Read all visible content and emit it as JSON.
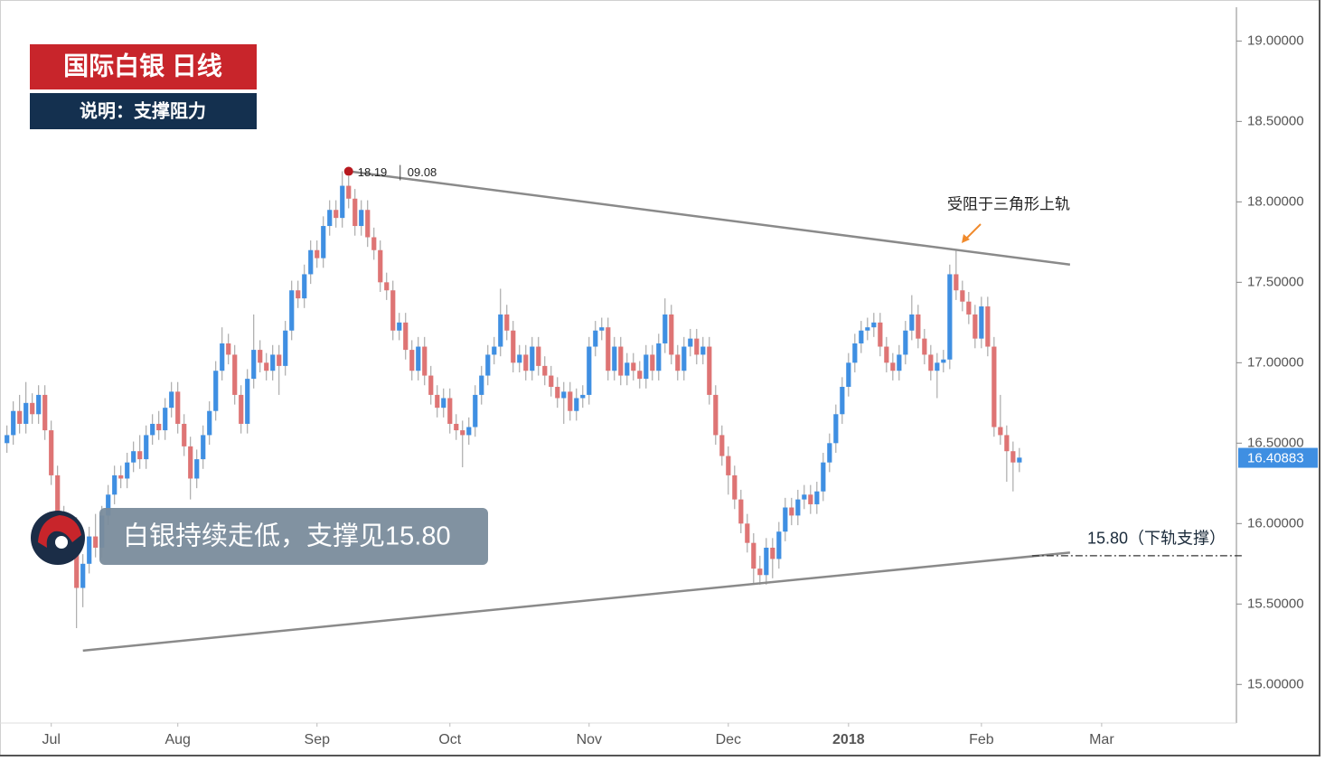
{
  "chart_data": {
    "type": "candlestick",
    "title": "国际白银  日线",
    "subtitle": "说明：支撑阻力",
    "caption": "白银持续走低，支撑见15.80",
    "annotation": "受阻于三角形上轨",
    "up_color": "#3f8fe2",
    "down_color": "#de7474",
    "x": [
      0,
      1,
      2,
      3,
      4,
      5,
      6,
      7,
      8,
      9,
      10,
      11,
      12,
      13,
      14,
      15,
      16,
      17,
      18,
      19,
      20,
      21,
      22,
      23,
      24,
      25,
      26,
      27,
      28,
      29,
      30,
      31,
      32,
      33,
      34,
      35,
      36,
      37,
      38,
      39,
      40,
      41,
      42,
      43,
      44,
      45,
      46,
      47,
      48,
      49,
      50,
      51,
      52,
      53,
      54,
      55,
      56,
      57,
      58,
      59,
      60,
      61,
      62,
      63,
      64,
      65,
      66,
      67,
      68,
      69,
      70,
      71,
      72,
      73,
      74,
      75,
      76,
      77,
      78,
      79,
      80,
      81,
      82,
      83,
      84,
      85,
      86,
      87,
      88,
      89,
      90,
      91,
      92,
      93,
      94,
      95,
      96,
      97,
      98,
      99,
      100,
      101,
      102,
      103,
      104,
      105,
      106,
      107,
      108,
      109,
      110,
      111,
      112,
      113,
      114,
      115,
      116,
      117,
      118,
      119,
      120,
      121,
      122,
      123,
      124,
      125,
      126,
      127,
      128,
      129,
      130,
      131,
      132,
      133,
      134,
      135,
      136,
      137,
      138,
      139,
      140,
      141,
      142,
      143,
      144,
      145,
      146,
      147,
      148,
      149,
      150,
      151,
      152,
      153,
      154,
      155,
      156,
      157,
      158,
      159,
      160
    ],
    "open": [
      16.5,
      16.55,
      16.7,
      16.62,
      16.75,
      16.68,
      16.8,
      16.58,
      16.3,
      16.05,
      15.88,
      15.98,
      15.6,
      15.75,
      15.92,
      15.85,
      16.05,
      16.18,
      16.3,
      16.28,
      16.38,
      16.45,
      16.4,
      16.55,
      16.62,
      16.58,
      16.72,
      16.82,
      16.62,
      16.48,
      16.28,
      16.4,
      16.55,
      16.7,
      16.95,
      17.12,
      17.05,
      16.8,
      16.62,
      16.9,
      17.08,
      17.0,
      16.95,
      17.05,
      16.98,
      17.2,
      17.45,
      17.4,
      17.55,
      17.7,
      17.65,
      17.85,
      17.95,
      17.9,
      18.1,
      18.02,
      17.85,
      17.95,
      17.78,
      17.7,
      17.5,
      17.45,
      17.2,
      17.25,
      17.08,
      16.95,
      17.1,
      16.92,
      16.8,
      16.72,
      16.78,
      16.62,
      16.58,
      16.55,
      16.6,
      16.8,
      16.92,
      17.05,
      17.1,
      17.3,
      17.2,
      17.0,
      17.05,
      16.95,
      17.1,
      16.98,
      16.92,
      16.85,
      16.78,
      16.82,
      16.7,
      16.78,
      16.8,
      17.1,
      17.2,
      17.22,
      16.95,
      17.1,
      16.92,
      17.0,
      16.95,
      16.9,
      17.05,
      16.95,
      17.12,
      17.3,
      17.05,
      16.95,
      17.1,
      17.15,
      17.05,
      17.1,
      16.8,
      16.55,
      16.42,
      16.3,
      16.15,
      16.0,
      15.88,
      15.72,
      15.68,
      15.85,
      15.78,
      15.95,
      16.1,
      16.05,
      16.15,
      16.18,
      16.12,
      16.2,
      16.38,
      16.5,
      16.68,
      16.85,
      17.0,
      17.12,
      17.2,
      17.22,
      17.25,
      17.1,
      17.0,
      16.95,
      17.05,
      17.2,
      17.3,
      17.15,
      17.05,
      16.95,
      17.0,
      17.02,
      17.55,
      17.45,
      17.38,
      17.3,
      17.15,
      17.35,
      17.1,
      16.6,
      16.55,
      16.45,
      16.38
    ],
    "high": [
      16.61,
      16.76,
      16.8,
      16.88,
      16.81,
      16.86,
      16.86,
      16.64,
      16.36,
      16.11,
      16.04,
      16.04,
      15.81,
      15.98,
      16.06,
      16.11,
      16.24,
      16.36,
      16.36,
      16.44,
      16.51,
      16.55,
      16.61,
      16.68,
      16.7,
      16.78,
      16.88,
      16.88,
      16.68,
      16.54,
      16.46,
      16.61,
      16.76,
      17.01,
      17.22,
      17.18,
      17.11,
      16.86,
      16.96,
      17.3,
      17.14,
      17.06,
      17.11,
      17.11,
      17.26,
      17.51,
      17.51,
      17.61,
      17.76,
      17.76,
      17.91,
      18.01,
      18.01,
      18.19,
      18.16,
      18.08,
      18.01,
      18.01,
      17.84,
      17.76,
      17.56,
      17.51,
      17.31,
      17.31,
      17.14,
      17.16,
      17.16,
      16.98,
      16.86,
      16.84,
      16.84,
      16.68,
      16.64,
      16.66,
      16.86,
      16.98,
      17.11,
      17.16,
      17.46,
      17.36,
      17.26,
      17.11,
      17.11,
      17.16,
      17.16,
      17.04,
      16.98,
      16.91,
      16.88,
      16.88,
      16.84,
      16.86,
      17.16,
      17.26,
      17.28,
      17.28,
      17.16,
      17.16,
      17.06,
      17.06,
      17.01,
      17.11,
      17.11,
      17.18,
      17.4,
      17.36,
      17.11,
      17.16,
      17.21,
      17.21,
      17.16,
      17.16,
      16.86,
      16.61,
      16.48,
      16.36,
      16.21,
      16.06,
      15.94,
      15.8,
      15.91,
      15.91,
      16.01,
      16.16,
      16.16,
      16.21,
      16.24,
      16.24,
      16.26,
      16.44,
      16.56,
      16.74,
      16.91,
      17.06,
      17.18,
      17.26,
      17.28,
      17.31,
      17.31,
      17.16,
      17.06,
      17.11,
      17.26,
      17.42,
      17.36,
      17.21,
      17.11,
      17.06,
      17.08,
      17.61,
      17.7,
      17.51,
      17.44,
      17.36,
      17.41,
      17.41,
      17.16,
      16.8,
      16.61,
      16.51,
      16.47
    ],
    "low": [
      16.44,
      16.49,
      16.56,
      16.56,
      16.62,
      16.62,
      16.52,
      16.24,
      15.99,
      15.82,
      15.82,
      15.35,
      15.48,
      15.69,
      15.79,
      15.79,
      15.99,
      16.12,
      16.22,
      16.22,
      16.32,
      16.34,
      16.34,
      16.49,
      16.52,
      16.52,
      16.66,
      16.56,
      16.42,
      16.15,
      16.22,
      16.34,
      16.49,
      16.64,
      16.89,
      16.99,
      16.74,
      16.56,
      16.56,
      16.84,
      16.94,
      16.89,
      16.89,
      16.8,
      16.92,
      17.14,
      17.34,
      17.34,
      17.49,
      17.59,
      17.59,
      17.79,
      17.84,
      17.84,
      17.96,
      17.79,
      17.79,
      17.72,
      17.64,
      17.44,
      17.39,
      17.14,
      17.14,
      17.02,
      16.89,
      16.89,
      16.86,
      16.74,
      16.66,
      16.66,
      16.56,
      16.52,
      16.35,
      16.49,
      16.54,
      16.74,
      16.86,
      16.99,
      17.04,
      17.14,
      16.94,
      16.94,
      16.89,
      16.89,
      16.92,
      16.86,
      16.79,
      16.72,
      16.62,
      16.64,
      16.64,
      16.72,
      16.74,
      17.04,
      17.14,
      16.89,
      16.89,
      16.86,
      16.86,
      16.89,
      16.84,
      16.84,
      16.89,
      16.89,
      17.06,
      16.99,
      16.89,
      16.89,
      17.04,
      16.99,
      16.99,
      16.74,
      16.49,
      16.36,
      16.18,
      16.09,
      15.94,
      15.82,
      15.62,
      15.62,
      15.62,
      15.66,
      15.72,
      15.89,
      15.99,
      15.99,
      16.09,
      16.06,
      16.06,
      16.14,
      16.32,
      16.44,
      16.62,
      16.79,
      16.94,
      17.06,
      17.14,
      17.16,
      17.04,
      16.94,
      16.89,
      16.89,
      16.99,
      17.14,
      17.09,
      16.99,
      16.89,
      16.78,
      16.94,
      16.96,
      17.39,
      17.32,
      17.24,
      17.09,
      17.09,
      17.04,
      16.54,
      16.49,
      16.26,
      16.2,
      16.32
    ],
    "close": [
      16.55,
      16.7,
      16.62,
      16.75,
      16.68,
      16.8,
      16.58,
      16.3,
      16.05,
      15.88,
      15.98,
      15.6,
      15.75,
      15.92,
      15.85,
      16.05,
      16.18,
      16.3,
      16.28,
      16.38,
      16.45,
      16.4,
      16.55,
      16.62,
      16.58,
      16.72,
      16.82,
      16.62,
      16.48,
      16.28,
      16.4,
      16.55,
      16.7,
      16.95,
      17.12,
      17.05,
      16.8,
      16.62,
      16.9,
      17.08,
      17.0,
      16.95,
      17.05,
      16.98,
      17.2,
      17.45,
      17.4,
      17.55,
      17.7,
      17.65,
      17.85,
      17.95,
      17.9,
      18.1,
      18.02,
      17.85,
      17.95,
      17.78,
      17.7,
      17.5,
      17.45,
      17.2,
      17.25,
      17.08,
      16.95,
      17.1,
      16.92,
      16.8,
      16.72,
      16.78,
      16.62,
      16.58,
      16.55,
      16.6,
      16.8,
      16.92,
      17.05,
      17.1,
      17.3,
      17.2,
      17.0,
      17.05,
      16.95,
      17.1,
      16.98,
      16.92,
      16.85,
      16.78,
      16.82,
      16.7,
      16.78,
      16.8,
      17.1,
      17.2,
      17.22,
      16.95,
      17.1,
      16.92,
      17.0,
      16.95,
      16.9,
      17.05,
      16.95,
      17.12,
      17.3,
      17.05,
      16.95,
      17.1,
      17.15,
      17.05,
      17.1,
      16.8,
      16.55,
      16.42,
      16.3,
      16.15,
      16.0,
      15.88,
      15.72,
      15.68,
      15.85,
      15.78,
      15.95,
      16.1,
      16.05,
      16.15,
      16.18,
      16.12,
      16.2,
      16.38,
      16.5,
      16.68,
      16.85,
      17.0,
      17.12,
      17.2,
      17.22,
      17.25,
      17.1,
      17.0,
      16.95,
      17.05,
      17.2,
      17.3,
      17.15,
      17.05,
      16.95,
      17.0,
      17.02,
      17.55,
      17.45,
      17.38,
      17.3,
      17.15,
      17.35,
      17.1,
      16.6,
      16.55,
      16.45,
      16.38,
      16.41
    ],
    "xlim": [
      -1.1,
      194.3
    ],
    "xticks": [
      {
        "value": 7,
        "label": "Jul"
      },
      {
        "value": 27,
        "label": "Aug"
      },
      {
        "value": 49,
        "label": "Sep"
      },
      {
        "value": 70,
        "label": "Oct"
      },
      {
        "value": 92,
        "label": "Nov"
      },
      {
        "value": 114,
        "label": "Dec"
      },
      {
        "value": 133,
        "label": "2018",
        "bold": true
      },
      {
        "value": 154,
        "label": "Feb"
      },
      {
        "value": 173,
        "label": "Mar"
      }
    ],
    "ylim": [
      14.76,
      19.21
    ],
    "yticks": [
      {
        "value": 15,
        "label": "15.00000"
      },
      {
        "value": 15.5,
        "label": "15.50000"
      },
      {
        "value": 16,
        "label": "16.00000"
      },
      {
        "value": 16.5,
        "label": "16.50000"
      },
      {
        "value": 17,
        "label": "17.00000"
      },
      {
        "value": 17.5,
        "label": "17.50000"
      },
      {
        "value": 18,
        "label": "18.00000"
      },
      {
        "value": 18.5,
        "label": "18.50000"
      },
      {
        "value": 19,
        "label": "19.00000"
      }
    ],
    "trendline_color": "#8a8a8a",
    "trendlines": [
      {
        "x": [
          54,
          168
        ],
        "y": [
          18.19,
          17.61
        ]
      },
      {
        "x": [
          12,
          168
        ],
        "y": [
          15.21,
          15.82
        ]
      }
    ],
    "support": {
      "value": 15.8,
      "x": 162,
      "label": "15.80（下轨支撑）"
    },
    "peak": {
      "x": 54,
      "value": 18.19,
      "date": "09.08"
    },
    "last_price": 16.40883,
    "last_price_color": "#3f8fe2"
  }
}
